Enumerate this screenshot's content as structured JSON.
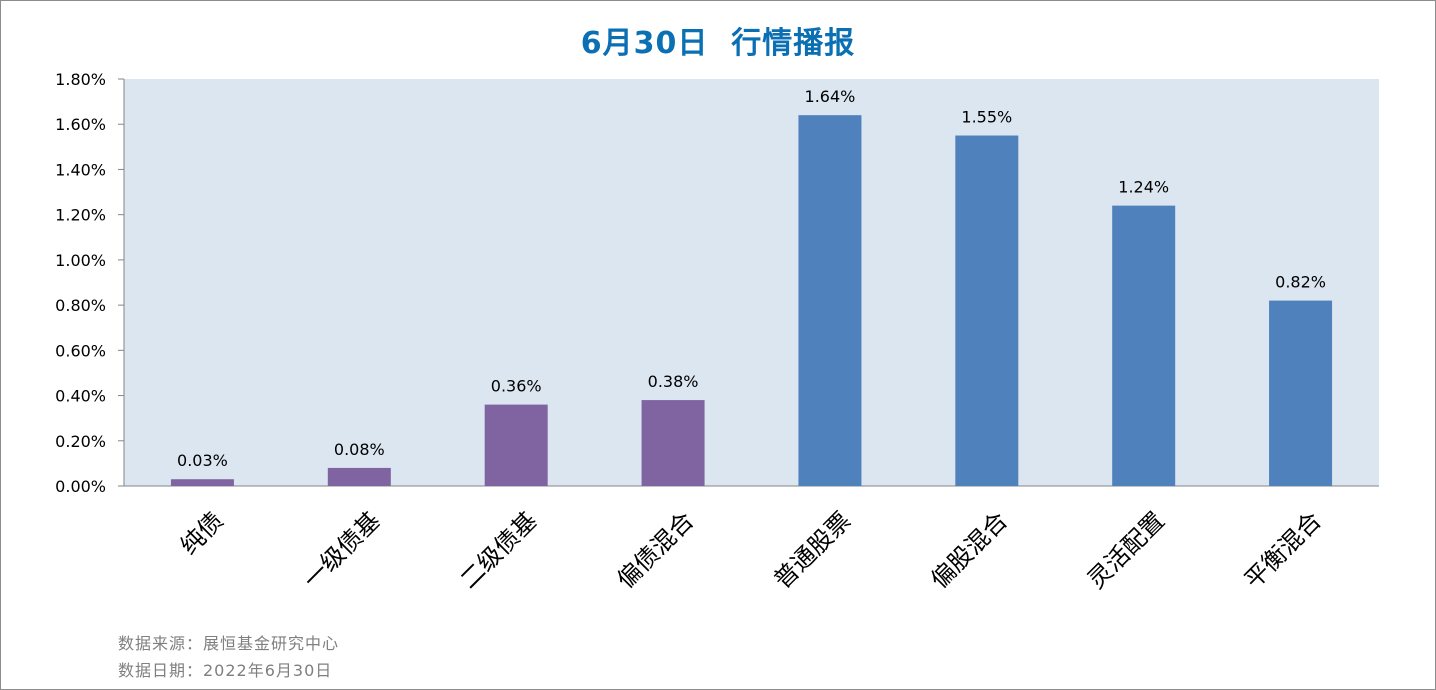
{
  "title": "6月30日  行情播报",
  "colors": {
    "plot_background": "#dce6f1",
    "bond_series": "#8064a2",
    "equity_series": "#4f81bd",
    "title": "#0a6fb3",
    "footer_text": "#7f7f7f"
  },
  "chart_data": {
    "type": "bar",
    "title": "6月30日  行情播报",
    "categories": [
      "纯债",
      "一级债基",
      "二级债基",
      "偏债混合",
      "普通股票",
      "偏股混合",
      "灵活配置",
      "平衡混合"
    ],
    "values": [
      0.03,
      0.08,
      0.36,
      0.38,
      1.64,
      1.55,
      1.24,
      0.82
    ],
    "value_labels": [
      "0.03%",
      "0.08%",
      "0.36%",
      "0.38%",
      "1.64%",
      "1.55%",
      "1.24%",
      "0.82%"
    ],
    "bar_colors": [
      "#8064a2",
      "#8064a2",
      "#8064a2",
      "#8064a2",
      "#4f81bd",
      "#4f81bd",
      "#4f81bd",
      "#4f81bd"
    ],
    "ylim": [
      0,
      1.8
    ],
    "yticks": [
      "0.00%",
      "0.20%",
      "0.40%",
      "0.60%",
      "0.80%",
      "1.00%",
      "1.20%",
      "1.40%",
      "1.60%",
      "1.80%"
    ],
    "ytick_values": [
      0,
      0.2,
      0.4,
      0.6,
      0.8,
      1.0,
      1.2,
      1.4,
      1.6,
      1.8
    ],
    "xlabel": "",
    "ylabel": "",
    "grid": false,
    "legend": "none",
    "x_label_rotation": "slanted"
  },
  "footer": {
    "source": "数据来源：展恒基金研究中心",
    "date": "数据日期：2022年6月30日"
  }
}
